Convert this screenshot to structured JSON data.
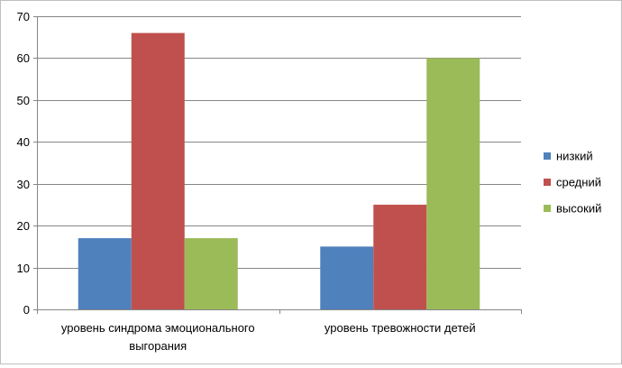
{
  "chart_data": {
    "type": "bar",
    "categories": [
      [
        "уровень синдрома эмоционального",
        "выгорания"
      ],
      [
        "уровень тревожности детей"
      ]
    ],
    "series": [
      {
        "name": "низкий",
        "color": "#4f81bd",
        "values": [
          17,
          15
        ]
      },
      {
        "name": "средний",
        "color": "#c0504d",
        "values": [
          66,
          25
        ]
      },
      {
        "name": "высокий",
        "color": "#9bbb59",
        "values": [
          17,
          60
        ]
      }
    ],
    "ylim": [
      0,
      70
    ],
    "yticks": [
      0,
      10,
      20,
      30,
      40,
      50,
      60,
      70
    ],
    "grid": true,
    "legend_position": "right",
    "title": "",
    "xlabel": "",
    "ylabel": ""
  }
}
